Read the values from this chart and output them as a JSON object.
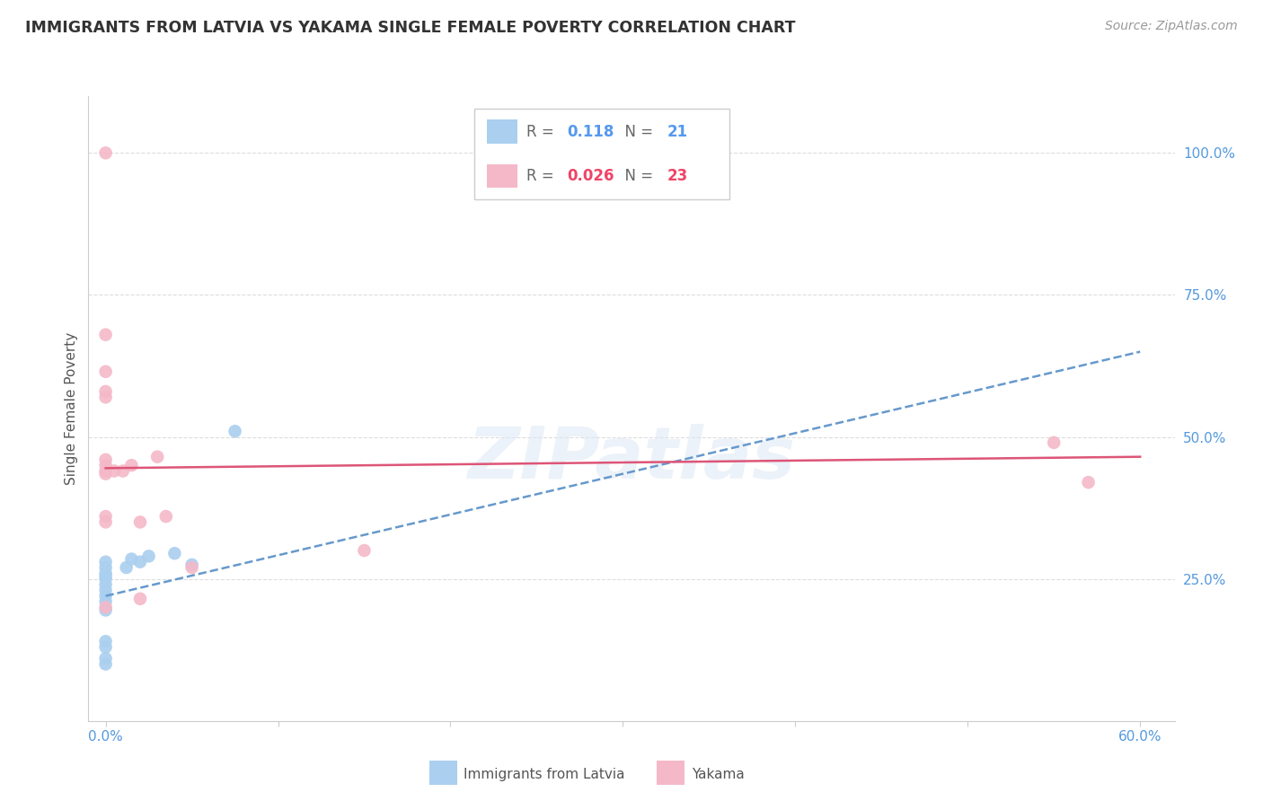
{
  "title": "IMMIGRANTS FROM LATVIA VS YAKAMA SINGLE FEMALE POVERTY CORRELATION CHART",
  "source": "Source: ZipAtlas.com",
  "ylabel": "Single Female Poverty",
  "x_tick_labels_ends": [
    "0.0%",
    "60.0%"
  ],
  "x_tick_vals": [
    0,
    10,
    20,
    30,
    40,
    50,
    60
  ],
  "y_tick_labels": [
    "100.0%",
    "75.0%",
    "50.0%",
    "25.0%"
  ],
  "y_tick_vals": [
    100,
    75,
    50,
    25
  ],
  "xlim": [
    -1,
    62
  ],
  "ylim": [
    0,
    110
  ],
  "legend_blue_R": "0.118",
  "legend_blue_N": "21",
  "legend_pink_R": "0.026",
  "legend_pink_N": "23",
  "bottom_legend_labels": [
    "Immigrants from Latvia",
    "Yakama"
  ],
  "watermark_text": "ZIPatlas",
  "blue_scatter_x": [
    0.0,
    0.0,
    0.0,
    0.0,
    0.0,
    0.0,
    0.0,
    0.0,
    0.0,
    0.0,
    0.0,
    0.0,
    0.0,
    0.0,
    1.2,
    1.5,
    2.0,
    2.5,
    4.0,
    5.0,
    7.5
  ],
  "blue_scatter_y": [
    21.0,
    22.0,
    23.0,
    24.0,
    25.0,
    25.5,
    26.0,
    27.0,
    28.0,
    13.0,
    14.0,
    10.0,
    11.0,
    19.5,
    27.0,
    28.5,
    28.0,
    29.0,
    29.5,
    27.5,
    51.0
  ],
  "pink_scatter_x": [
    0.0,
    0.0,
    0.0,
    0.0,
    0.0,
    0.0,
    0.5,
    1.5,
    3.0,
    3.5,
    5.0,
    15.0,
    55.0,
    57.0,
    0.0,
    0.0,
    0.0,
    0.0,
    0.0,
    0.0,
    1.0,
    2.0,
    2.0
  ],
  "pink_scatter_y": [
    45.0,
    44.0,
    43.5,
    46.0,
    58.0,
    61.5,
    44.0,
    45.0,
    46.5,
    36.0,
    27.0,
    30.0,
    49.0,
    42.0,
    100.0,
    68.0,
    57.0,
    36.0,
    35.0,
    20.0,
    44.0,
    35.0,
    21.5
  ],
  "blue_line_x": [
    0.0,
    60.0
  ],
  "blue_line_y": [
    22.0,
    65.0
  ],
  "pink_line_x": [
    0.0,
    60.0
  ],
  "pink_line_y": [
    44.5,
    46.5
  ],
  "bg_color": "#ffffff",
  "blue_color": "#aacfef",
  "pink_color": "#f4b8c8",
  "blue_line_color": "#6699cc",
  "pink_line_color": "#dd5577",
  "grid_color": "#dddddd",
  "title_color": "#333333",
  "right_ytick_blue": "#5599dd",
  "legend_R_blue": "#5599ee",
  "legend_N_blue": "#5599ee",
  "legend_R_pink": "#ee4466",
  "legend_N_pink": "#ee4466"
}
